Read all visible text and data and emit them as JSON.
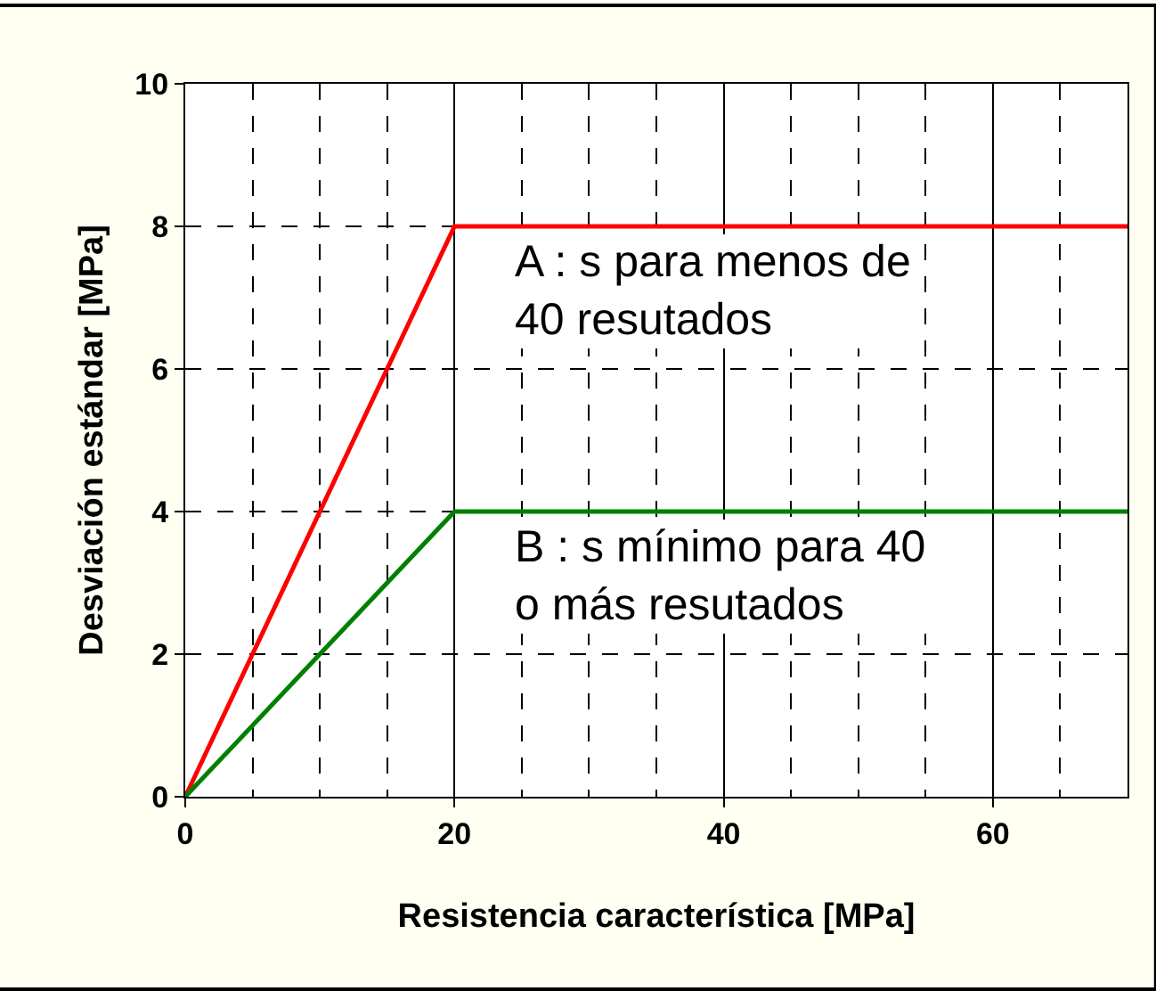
{
  "chart_data": {
    "type": "line",
    "xlabel": "Resistencia característica [MPa]",
    "ylabel": "Desviación estándar [MPa]",
    "xlim": [
      0,
      70
    ],
    "xticks": [
      0,
      20,
      40,
      60
    ],
    "ylim": [
      0,
      10
    ],
    "yticks": [
      0,
      2,
      4,
      6,
      8,
      10
    ],
    "series": [
      {
        "color": "#ff0000",
        "x": [
          0,
          20,
          70
        ],
        "values": [
          0,
          8,
          8
        ]
      },
      {
        "color": "#008000",
        "x": [
          0,
          20,
          70
        ],
        "values": [
          0,
          4,
          4
        ]
      }
    ],
    "annotations": [
      "A : s para menos de\n40 resutados",
      "B : s mínimo para 40\no más resutados"
    ],
    "grid": true,
    "marker": "none",
    "line_style": "solid"
  }
}
